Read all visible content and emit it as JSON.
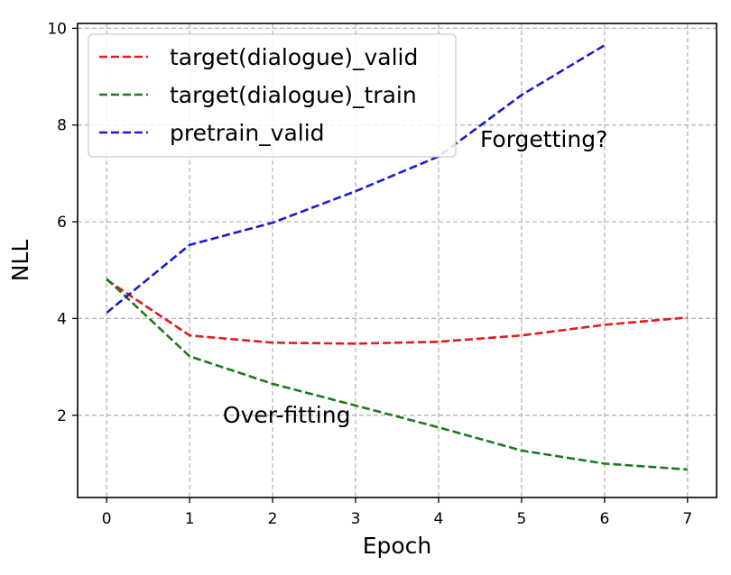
{
  "chart_data": {
    "type": "line",
    "xlabel": "Epoch",
    "ylabel": "NLL",
    "xlim": [
      -0.35,
      7.35
    ],
    "ylim": [
      0.3,
      10.1
    ],
    "xticks": [
      0,
      1,
      2,
      3,
      4,
      5,
      6,
      7
    ],
    "yticks": [
      2,
      4,
      6,
      8,
      10
    ],
    "grid": true,
    "legend_position": "upper-left",
    "series": [
      {
        "name": "target(dialogue)_valid",
        "color": "#e41a1c",
        "style": "dashed",
        "x": [
          0,
          1,
          2,
          3,
          4,
          5,
          6,
          7
        ],
        "y": [
          4.8,
          3.65,
          3.5,
          3.48,
          3.52,
          3.65,
          3.87,
          4.02
        ]
      },
      {
        "name": "target(dialogue)_train",
        "color": "#1a7a1a",
        "style": "dashed",
        "x": [
          0,
          1,
          2,
          3,
          4,
          5,
          6,
          7
        ],
        "y": [
          4.82,
          3.22,
          2.65,
          2.2,
          1.75,
          1.27,
          1.0,
          0.88
        ]
      },
      {
        "name": "pretrain_valid",
        "color": "#1a1ad0",
        "style": "dashed",
        "x": [
          0,
          1,
          2,
          3,
          4,
          5,
          6
        ],
        "y": [
          4.12,
          5.52,
          5.98,
          6.63,
          7.35,
          8.62,
          9.65
        ]
      }
    ],
    "annotations": [
      {
        "text": "Forgetting?",
        "x": 4.5,
        "y": 7.55
      },
      {
        "text": "Over-fitting",
        "x": 1.4,
        "y": 1.85
      }
    ]
  }
}
